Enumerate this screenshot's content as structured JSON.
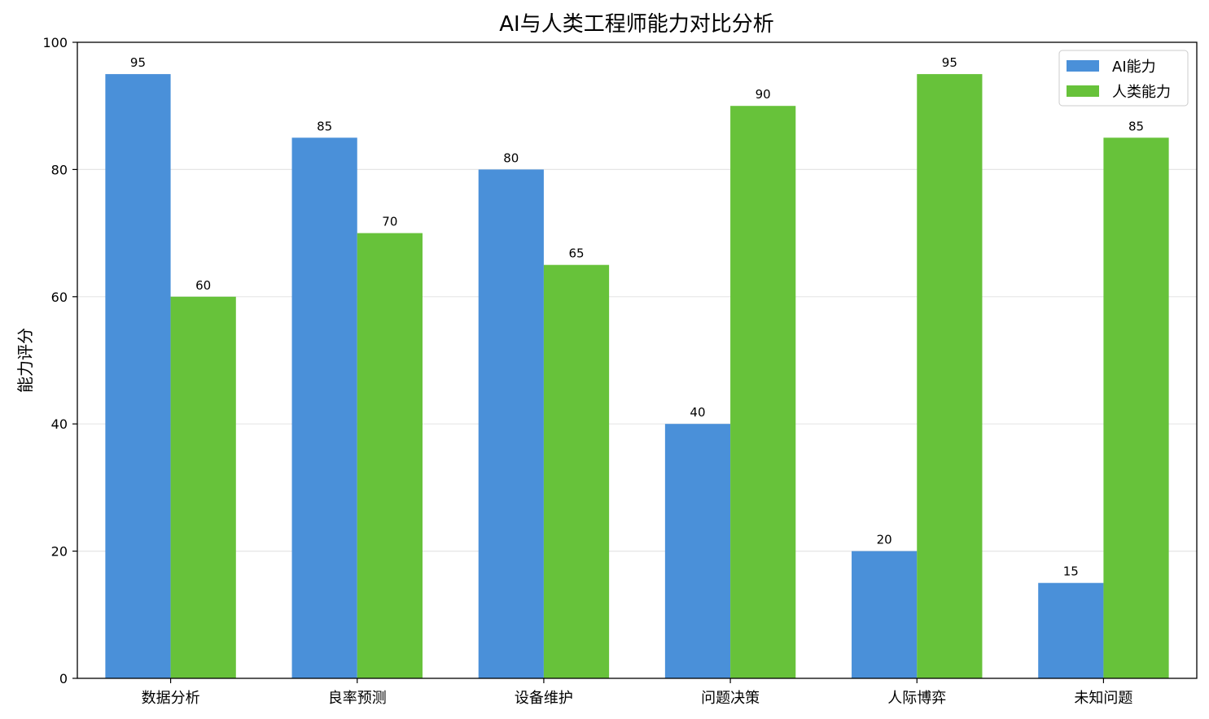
{
  "chart_data": {
    "type": "bar",
    "title": "AI与人类工程师能力对比分析",
    "xlabel": "",
    "ylabel": "能力评分",
    "ylim": [
      0,
      100
    ],
    "yticks": [
      0,
      20,
      40,
      60,
      80,
      100
    ],
    "grid": "horizontal",
    "legend_position": "top-right",
    "categories": [
      "数据分析",
      "良率预测",
      "设备维护",
      "问题决策",
      "人际博弈",
      "未知问题"
    ],
    "series": [
      {
        "name": "AI能力",
        "color": "#4a90d9",
        "values": [
          95,
          85,
          80,
          40,
          20,
          15
        ]
      },
      {
        "name": "人类能力",
        "color": "#67c23a",
        "values": [
          60,
          70,
          65,
          90,
          95,
          85
        ]
      }
    ]
  }
}
